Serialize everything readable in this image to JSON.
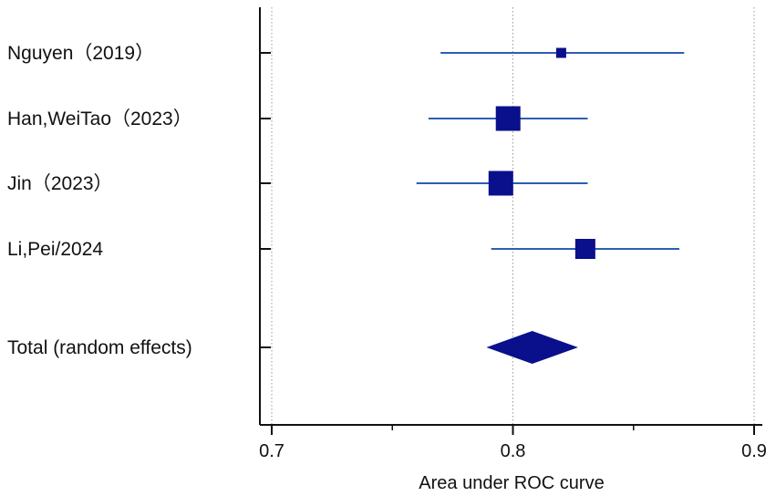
{
  "chart_data": {
    "type": "forest",
    "xlabel": "Area under ROC curve",
    "xlim": [
      0.7,
      0.9
    ],
    "xticks": [
      0.7,
      0.8,
      0.9
    ],
    "xtick_labels": [
      "0.7",
      "0.8",
      "0.9"
    ],
    "minor_xticks": [
      0.75,
      0.85
    ],
    "grid": "dotted vertical lines at major ticks",
    "studies": [
      {
        "label": "Nguyen（2019）",
        "estimate": 0.82,
        "ci": [
          0.77,
          0.871
        ],
        "weight": "small"
      },
      {
        "label": "Han,WeiTao（2023）",
        "estimate": 0.798,
        "ci": [
          0.765,
          0.831
        ],
        "weight": "large"
      },
      {
        "label": "Jin（2023）",
        "estimate": 0.795,
        "ci": [
          0.76,
          0.831
        ],
        "weight": "large"
      },
      {
        "label": "Li,Pei/2024",
        "estimate": 0.83,
        "ci": [
          0.791,
          0.869
        ],
        "weight": "medium"
      }
    ],
    "pooled": {
      "label": "Total (random effects)",
      "estimate": 0.808,
      "ci": [
        0.789,
        0.827
      ]
    },
    "colors": {
      "marker": "#0a0f8c",
      "ci_line": "#2b5fb4",
      "axis": "#111111",
      "grid": "#9a9a9a"
    }
  }
}
